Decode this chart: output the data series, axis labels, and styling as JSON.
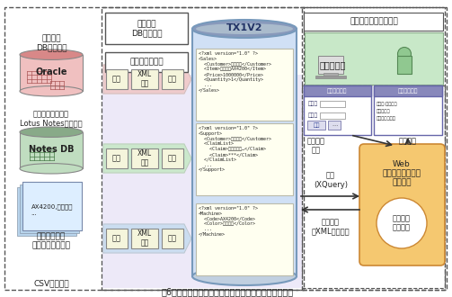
{
  "title": "図6：データ連携機能を利用した顧客情報管理システム",
  "fig_width": 5.03,
  "fig_height": 3.3,
  "bg": "#f0f0f0",
  "oracle_top": "#d88888",
  "oracle_body": "#f0c0c0",
  "oracle_label": "Oracle",
  "oracle_title": "販売管理\nDBサーバー",
  "notes_top": "#88aa88",
  "notes_body": "#c0ddc0",
  "notes_label": "Notes DB",
  "notes_title": "サポート情報管理\nLotus Notesサーバー",
  "csv_paper_color": "#b8d4ec",
  "csv_label": "AX4200,モノクロ\n...",
  "csv_title": "製品情報管理\nファイルサーバー",
  "csv_sub": "CSVファイル",
  "info_db_title": "情報統合\nDBサーバー",
  "data_link_label": "データ連携機能",
  "purple_bg": "#d8d0f0",
  "pink_arrow": "#f0c8c8",
  "green_arrow": "#c8e8c8",
  "blue_arrow": "#c8dcf0",
  "tx_label": "TX1V2",
  "tx_body": "#d0e0f5",
  "tx_top": "#8899bb",
  "tx_rim": "#aabbcc",
  "xml1": "<?xml version=\"1.0\" ?>\n<Sales>\n  <Customer>吉原工業</Customer>\n  <Item>プリンタAX4200</Item>\n  <Price>1000000</Price>\n  <Quantity>1</Quantity>\n  ...\n</Sales>",
  "xml2": "<?xml version=\"1.0\" ?>\n<Support>\n  <Customer>吉原工業</Customer>\n  <ClaimList>\n    <Claim>初期不良で…</Claim>\n    <Claim>***</Claim>\n  </ClaimList>\n  ...\n</Support>",
  "xml3": "<?xml version=\"1.0\" ?>\n<Machine>\n  <Code>AX4200</Code>\n  <Color>モノクロ</Color>\n  ...\n</Machine>",
  "right_title": "顧客情報管理システム",
  "sales_bg": "#c8e8c8",
  "sales_label": "営業担当者",
  "customer_search": "顧客情報\n検索",
  "search_result": "検索結果",
  "web_app": "Web\nアプリケーション\nサーバー",
  "browse_func": "顧客情報\n閲覧機能",
  "search_xq": "検索\n(XQuery)",
  "result_xml": "検索結果\n（XMLデータ）"
}
